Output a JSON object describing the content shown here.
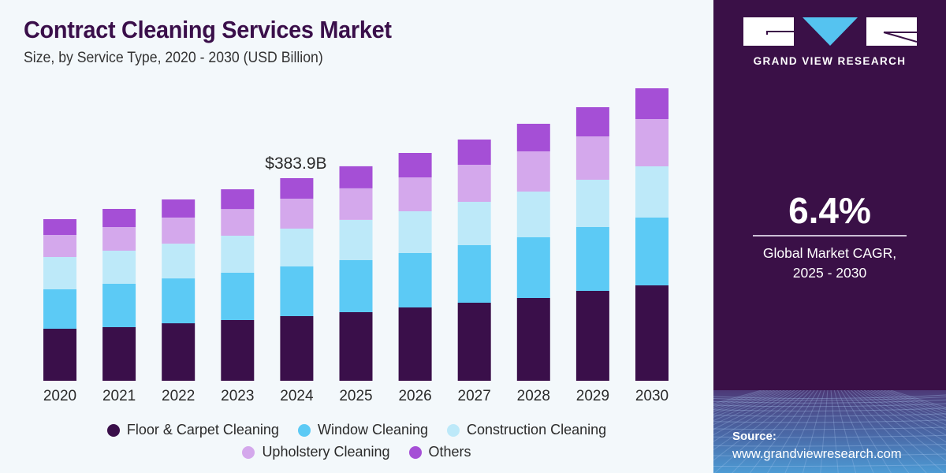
{
  "header": {
    "title": "Contract Cleaning Services Market",
    "subtitle": "Size, by Service Type, 2020 - 2030 (USD Billion)"
  },
  "sidebar": {
    "brand": "GRAND VIEW RESEARCH",
    "cagr_value": "6.4%",
    "cagr_label_line1": "Global Market CAGR,",
    "cagr_label_line2": "2025 - 2030",
    "source_label": "Source:",
    "source_url": "www.grandviewresearch.com",
    "logo_colors": {
      "block": "#ffffff",
      "triangle": "#55c3f0"
    }
  },
  "chart_data": {
    "type": "bar",
    "stacked": true,
    "title": "Contract Cleaning Services Market",
    "subtitle": "Size, by Service Type, 2020 - 2030 (USD Billion)",
    "xlabel": "",
    "ylabel": "",
    "ylim": [
      0,
      600
    ],
    "grid": false,
    "legend_position": "bottom",
    "categories": [
      "2020",
      "2021",
      "2022",
      "2023",
      "2024",
      "2025",
      "2026",
      "2027",
      "2028",
      "2029",
      "2030"
    ],
    "series": [
      {
        "name": "Floor & Carpet Cleaning",
        "color": "#3a0f4a",
        "values": [
          98.6,
          101.6,
          109.0,
          115.0,
          122.5,
          130.0,
          138.9,
          147.9,
          156.9,
          170.3,
          180.7
        ]
      },
      {
        "name": "Window Cleaning",
        "color": "#5ccaf5",
        "values": [
          74.7,
          82.2,
          85.1,
          89.6,
          94.1,
          98.6,
          103.1,
          109.0,
          115.0,
          121.0,
          128.5
        ]
      },
      {
        "name": "Construction Cleaning",
        "color": "#bde9f9",
        "values": [
          61.2,
          62.7,
          65.7,
          70.2,
          71.7,
          76.2,
          79.2,
          82.2,
          86.6,
          89.6,
          97.1
        ]
      },
      {
        "name": "Upholstery Cleaning",
        "color": "#d4a8ec",
        "values": [
          41.8,
          44.8,
          49.3,
          50.8,
          56.8,
          59.8,
          64.2,
          70.2,
          76.2,
          82.2,
          89.6
        ]
      },
      {
        "name": "Others",
        "color": "#a54fd6",
        "values": [
          29.9,
          34.4,
          34.4,
          37.3,
          38.8,
          41.8,
          46.3,
          47.8,
          52.3,
          55.3,
          58.3
        ]
      }
    ],
    "annotations": [
      {
        "category": "2024",
        "text": "$383.9B"
      }
    ]
  }
}
